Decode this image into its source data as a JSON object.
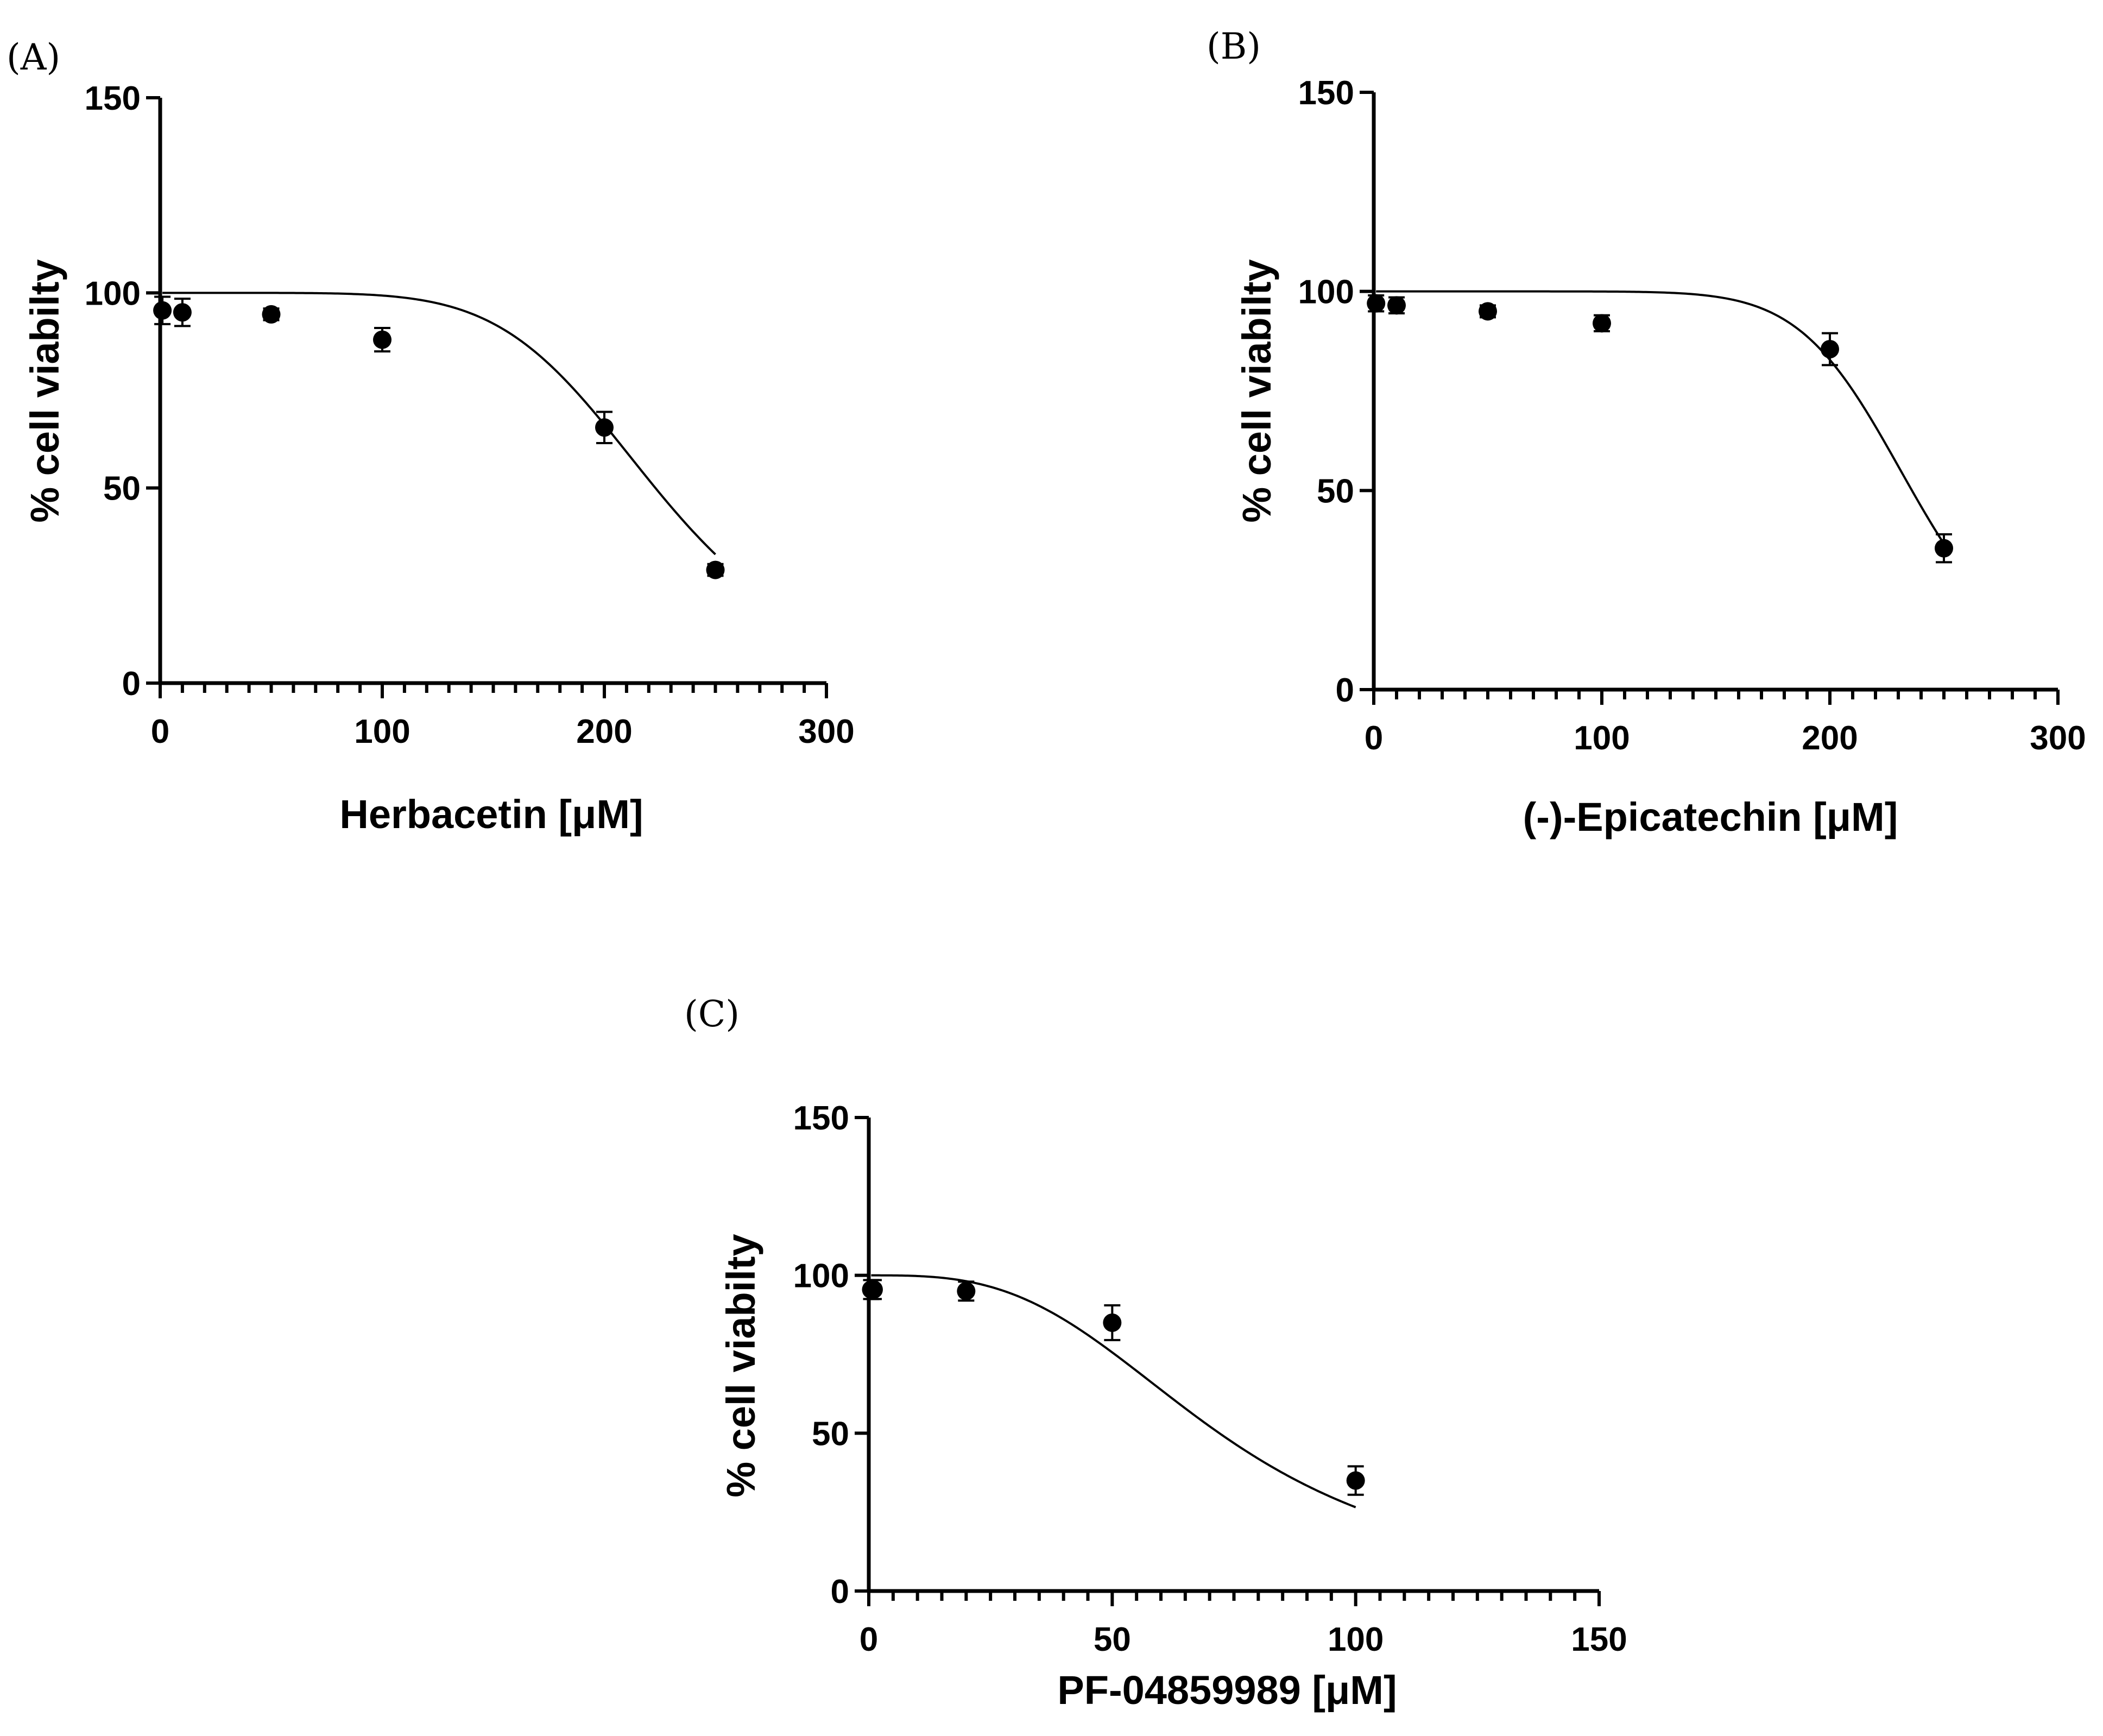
{
  "chart_data": [
    {
      "type": "scatter",
      "panel_label": "(A)",
      "xlabel": "Herbacetin [μM]",
      "ylabel": "% cell viabilty",
      "xlim": [
        0,
        300
      ],
      "ylim": [
        0,
        150
      ],
      "xticks": [
        0,
        100,
        200,
        300
      ],
      "yticks": [
        0,
        50,
        100,
        150
      ],
      "x_minor_step": 10,
      "fit_curve": {
        "model": "sigmoidal dose-response",
        "top": 100,
        "bottom": 0,
        "ic50": 223,
        "hill": 6.2
      },
      "series": [
        {
          "x": [
            1,
            10,
            50,
            100,
            200,
            250
          ],
          "y": [
            95.5,
            95,
            94.5,
            88,
            65.5,
            29
          ],
          "error": [
            3.5,
            3.5,
            1.5,
            3,
            4,
            1.5
          ]
        }
      ]
    },
    {
      "type": "scatter",
      "panel_label": "(B)",
      "xlabel": "(-)-Epicatechin [μM]",
      "ylabel": "% cell viabilty",
      "xlim": [
        0,
        300
      ],
      "ylim": [
        0,
        150
      ],
      "xticks": [
        0,
        100,
        200,
        300
      ],
      "yticks": [
        0,
        50,
        100,
        150
      ],
      "x_minor_step": 10,
      "fit_curve": {
        "model": "sigmoidal dose-response",
        "top": 100,
        "bottom": 0,
        "ic50": 236,
        "hill": 9.5
      },
      "series": [
        {
          "x": [
            1,
            10,
            50,
            100,
            200,
            250
          ],
          "y": [
            97,
            96.5,
            95,
            92,
            85.5,
            35.5
          ],
          "error": [
            2,
            2,
            1.5,
            2,
            4,
            3.5
          ]
        }
      ]
    },
    {
      "type": "scatter",
      "panel_label": "(C)",
      "xlabel": "PF-04859989 [μM]",
      "ylabel": "% cell viabilty",
      "xlim": [
        0,
        150
      ],
      "ylim": [
        0,
        150
      ],
      "xticks": [
        0,
        50,
        100,
        150
      ],
      "yticks": [
        0,
        50,
        100,
        150
      ],
      "x_minor_step": 5,
      "fit_curve": {
        "model": "sigmoidal dose-response",
        "top": 100,
        "bottom": 0,
        "ic50": 72,
        "hill": 3.1
      },
      "series": [
        {
          "x": [
            0.5,
            1,
            20,
            50,
            100
          ],
          "y": [
            95.5,
            95.5,
            95,
            85,
            35
          ],
          "error": [
            3,
            3,
            3,
            5.5,
            4.5
          ]
        }
      ]
    }
  ]
}
